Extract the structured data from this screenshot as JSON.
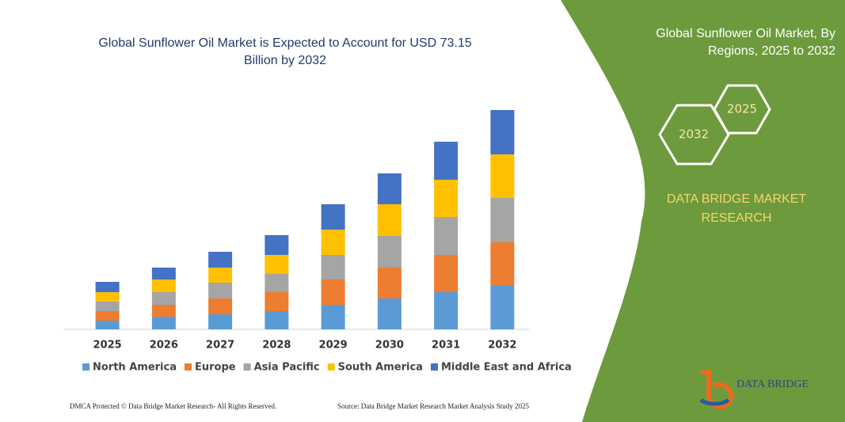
{
  "chart_data": {
    "type": "stacked-bar",
    "title": "Global Sunflower Oil Market is Expected to Account for USD 73.15 Billion by 2032",
    "categories": [
      "2025",
      "2026",
      "2027",
      "2028",
      "2029",
      "2030",
      "2031",
      "2032"
    ],
    "series": [
      {
        "name": "North America",
        "color": "#5b9bd5",
        "values": [
          11,
          16,
          19,
          23,
          31,
          39,
          47,
          55
        ]
      },
      {
        "name": "Europe",
        "color": "#ed7d31",
        "values": [
          12,
          15,
          20,
          24,
          32,
          39,
          47,
          55
        ]
      },
      {
        "name": "Asia Pacific",
        "color": "#a5a5a5",
        "values": [
          12,
          16,
          20,
          23,
          31,
          40,
          48,
          56
        ]
      },
      {
        "name": "South America",
        "color": "#ffc000",
        "values": [
          12,
          16,
          19,
          24,
          32,
          40,
          47,
          55
        ]
      },
      {
        "name": "Middle East and Africa",
        "color": "#4472c4",
        "values": [
          13,
          15,
          20,
          25,
          32,
          39,
          48,
          56
        ]
      }
    ],
    "ylim": [
      0,
      280
    ]
  },
  "panel": {
    "title": "Global Sunflower Oil Market, By Regions, 2025 to 2032",
    "hex_back": "2025",
    "hex_front": "2032",
    "brand": "DATA BRIDGE MARKET RESEARCH",
    "logo": "DATA BRIDGE"
  },
  "footer": {
    "left": "DMCA Protected © Data Bridge Market Research- All Rights Reserved.",
    "right": "Source: Data Bridge Market Research Market Analysis Study 2025"
  }
}
